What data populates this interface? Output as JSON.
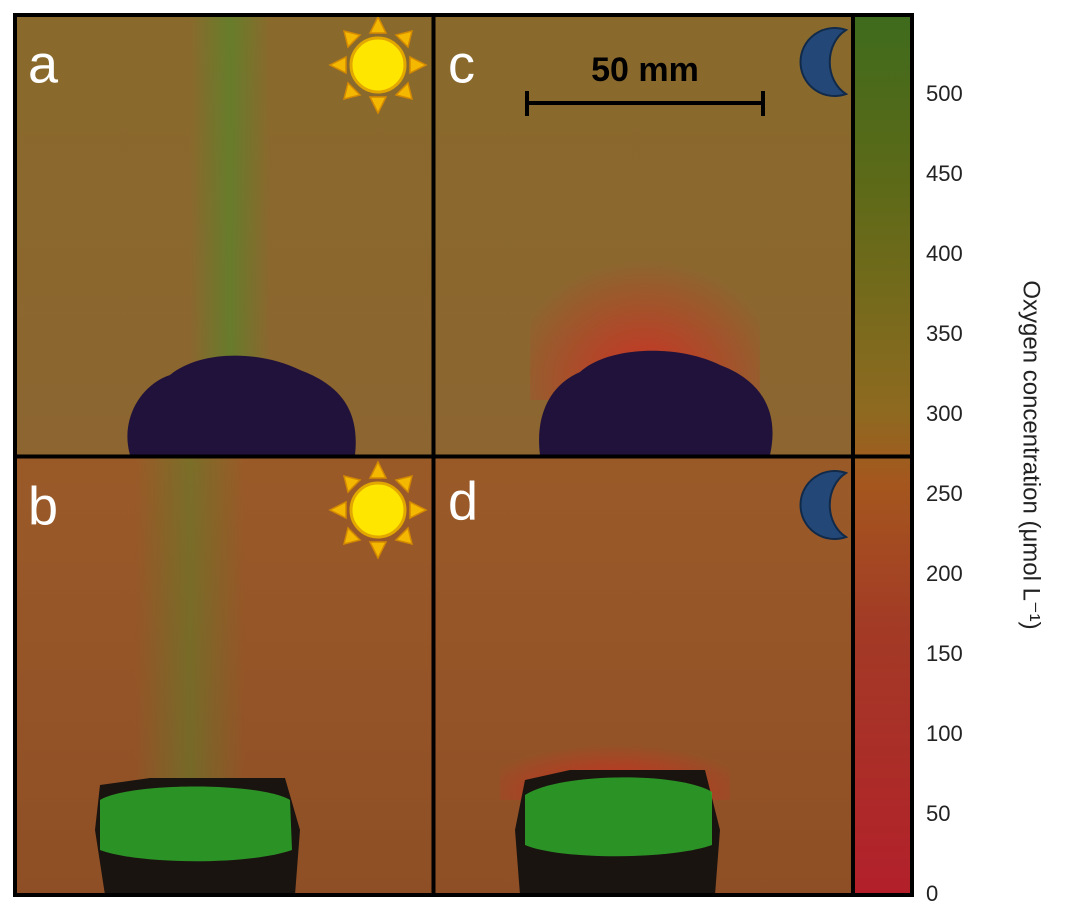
{
  "panels": [
    {
      "label": "a"
    },
    {
      "label": "c"
    },
    {
      "label": "b"
    },
    {
      "label": "d"
    }
  ],
  "scale_bar": {
    "label": "50 mm"
  },
  "chart_data": {
    "type": "colorbar",
    "ylabel": "Oxygen concentration (μmol L⁻¹)",
    "ylim": [
      0,
      550
    ],
    "yticks": [
      0,
      50,
      100,
      150,
      200,
      250,
      300,
      350,
      400,
      450,
      500
    ]
  }
}
